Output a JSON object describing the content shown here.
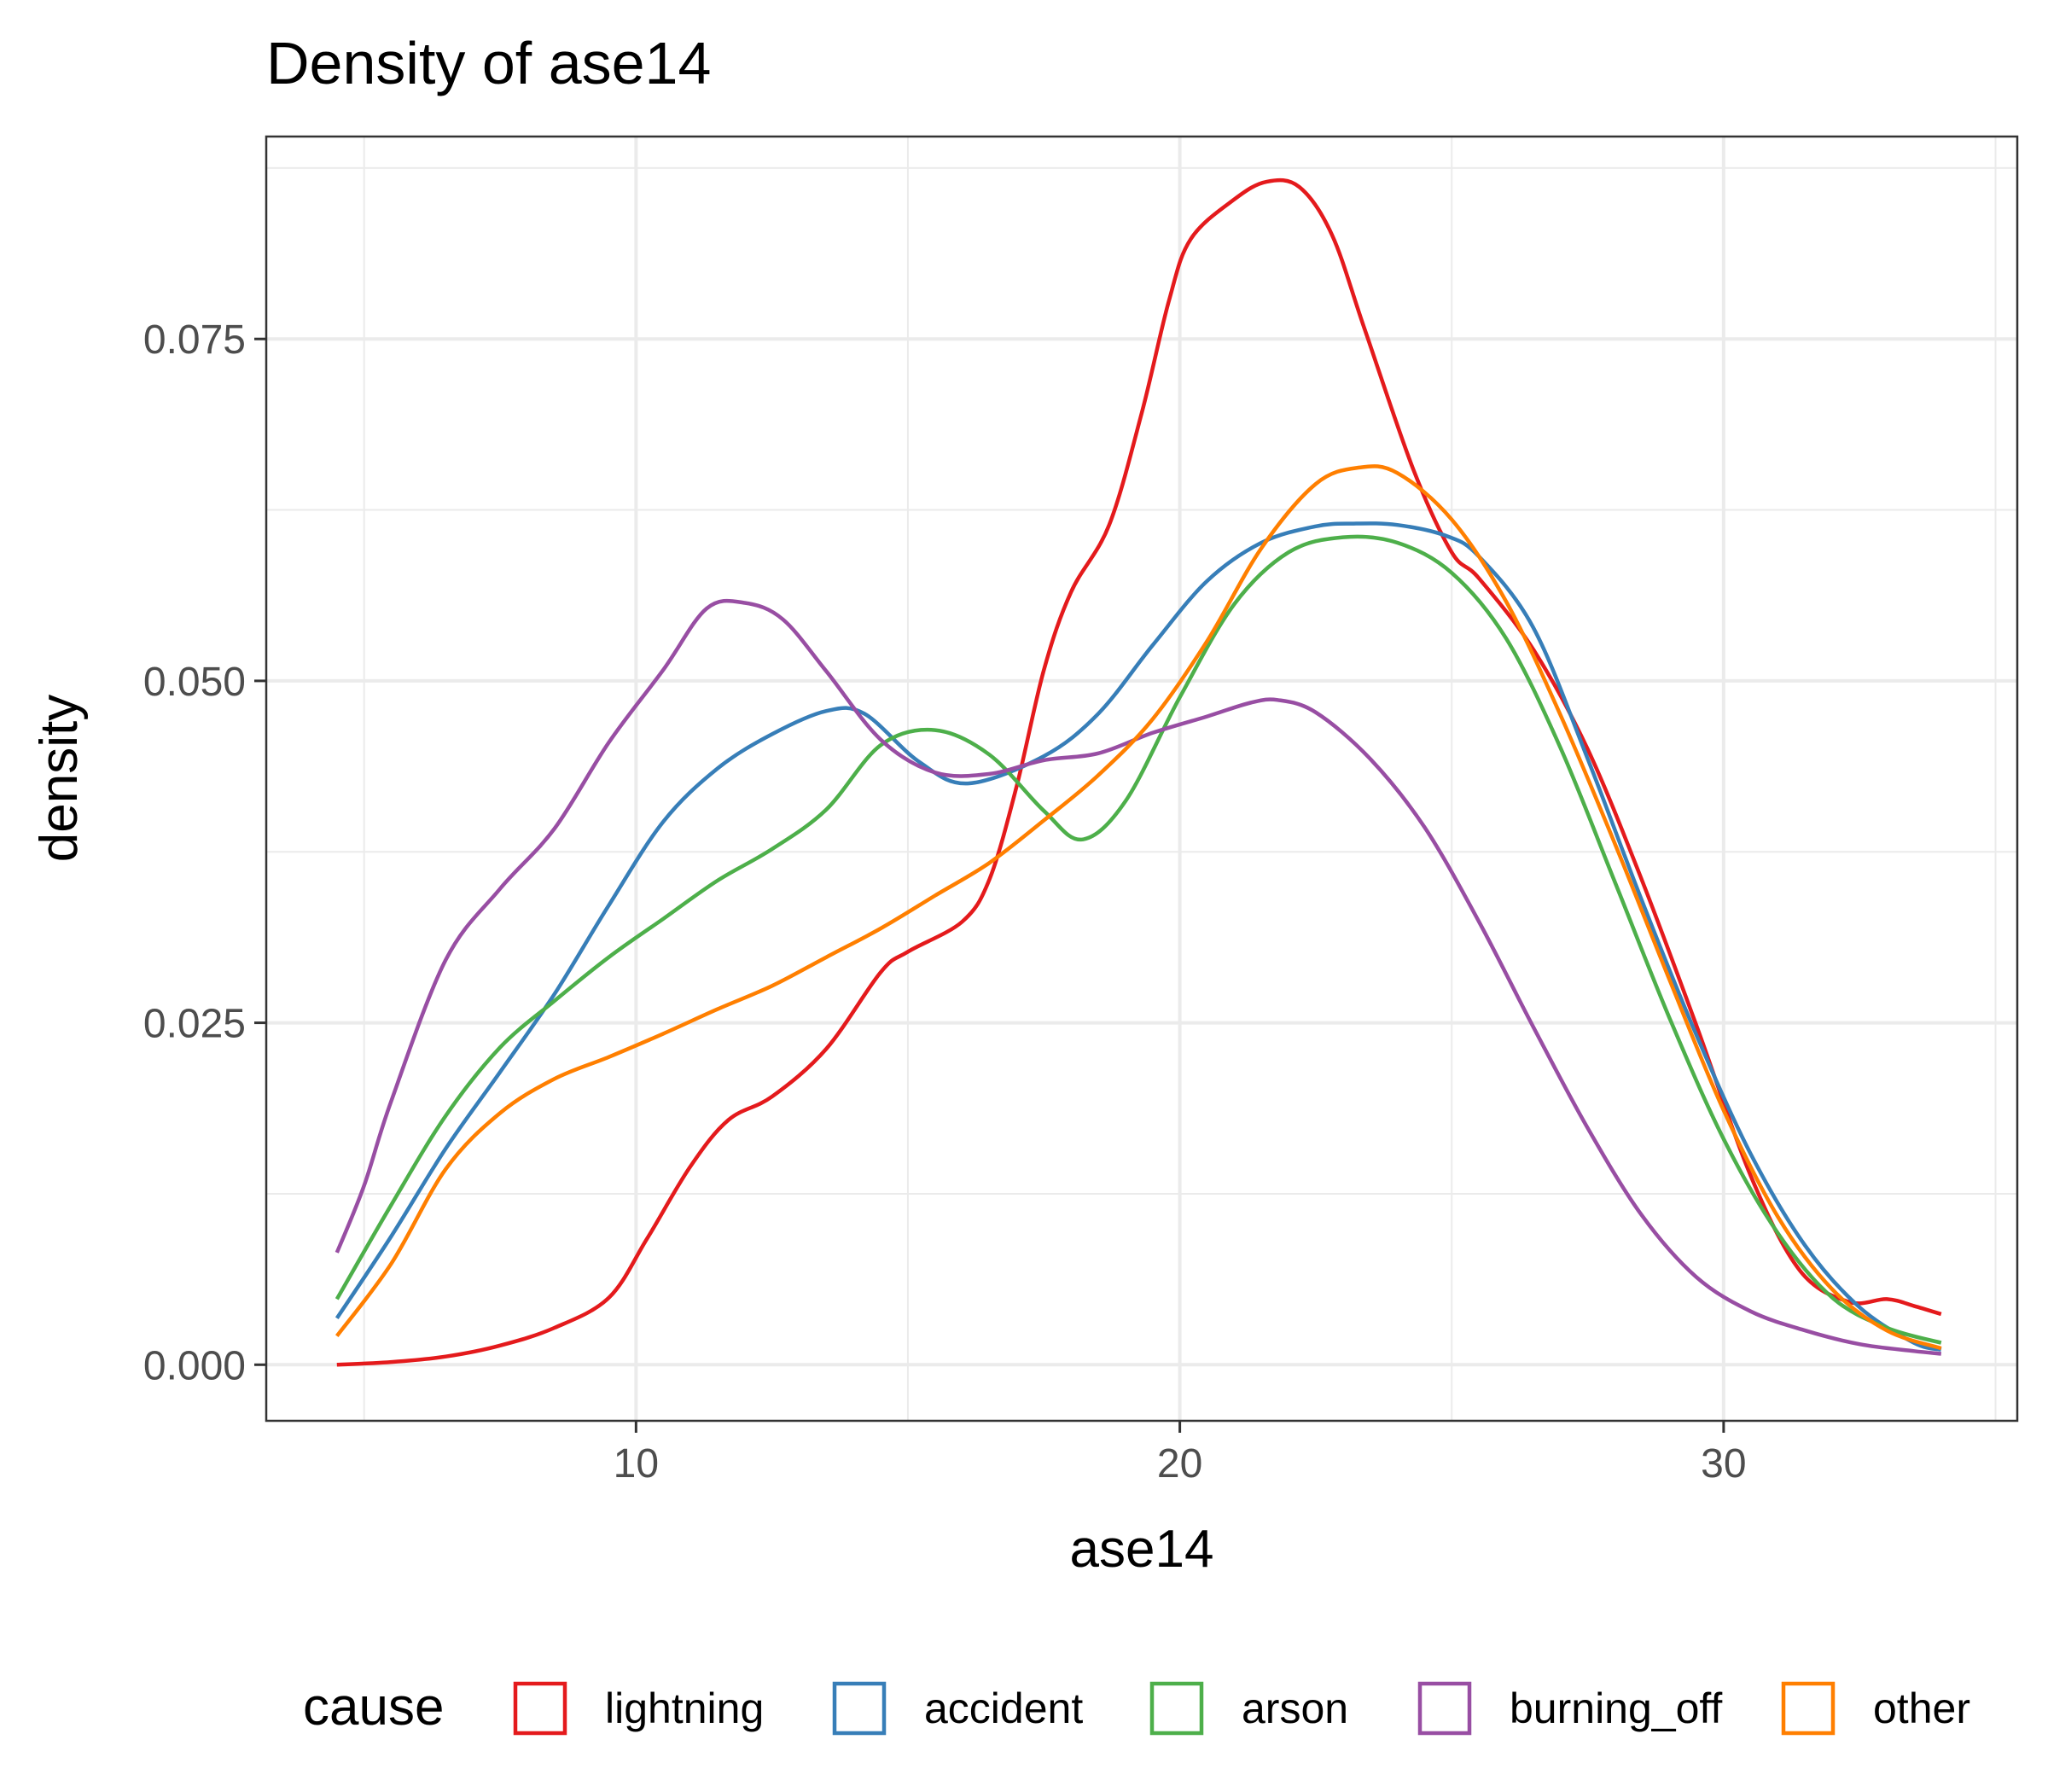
{
  "chart_data": {
    "type": "line",
    "title": "Density of ase14",
    "xlabel": "ase14",
    "ylabel": "density",
    "xlim": [
      3.2,
      35.4
    ],
    "ylim": [
      -0.0041,
      0.0898
    ],
    "x_ticks": [
      10,
      20,
      30
    ],
    "x_tick_labels": [
      "10",
      "20",
      "30"
    ],
    "y_ticks": [
      0.0,
      0.025,
      0.05,
      0.075
    ],
    "y_tick_labels": [
      "0.000",
      "0.025",
      "0.050",
      "0.075"
    ],
    "grid": true,
    "legend": {
      "title": "cause",
      "position": "bottom"
    },
    "series": [
      {
        "name": "lightning",
        "color": "#E41A1C",
        "x": [
          4.5,
          5.5,
          6.5,
          7.5,
          8.5,
          9.5,
          10.2,
          11,
          11.7,
          12.5,
          13.5,
          14.5,
          15,
          16,
          16.5,
          17,
          17.5,
          18,
          18.7,
          19.3,
          19.8,
          20.2,
          21,
          21.6,
          22.2,
          22.8,
          23.4,
          24.3,
          25,
          25.5,
          26.5,
          27.5,
          28.5,
          29.5,
          30.5,
          31.4,
          32.3,
          33,
          33.5,
          34
        ],
        "y": [
          0.0,
          0.0002,
          0.0006,
          0.0014,
          0.0027,
          0.0049,
          0.0092,
          0.0145,
          0.0179,
          0.0196,
          0.0231,
          0.0287,
          0.0302,
          0.0324,
          0.0355,
          0.0423,
          0.0508,
          0.0565,
          0.0614,
          0.0696,
          0.0778,
          0.0823,
          0.0852,
          0.0865,
          0.0861,
          0.0826,
          0.0757,
          0.0654,
          0.0594,
          0.0575,
          0.0523,
          0.045,
          0.0354,
          0.0248,
          0.0138,
          0.0069,
          0.0046,
          0.0048,
          0.0043,
          0.0037
        ]
      },
      {
        "name": "accident",
        "color": "#377EB8",
        "x": [
          4.5,
          5.5,
          6.5,
          7.5,
          8.5,
          9.5,
          10.5,
          11.5,
          12.5,
          13.5,
          14.2,
          15.2,
          16.1,
          17.5,
          18.5,
          19.5,
          20.5,
          21.5,
          22.5,
          23.2,
          24,
          24.9,
          25.5,
          26.5,
          27.5,
          28.5,
          29.5,
          30.5,
          31.5,
          32.5,
          33.5,
          34
        ],
        "y": [
          0.0034,
          0.0094,
          0.0158,
          0.0214,
          0.0271,
          0.0336,
          0.0397,
          0.0436,
          0.0461,
          0.0478,
          0.0476,
          0.0441,
          0.0425,
          0.0445,
          0.0476,
          0.0526,
          0.0573,
          0.0601,
          0.0613,
          0.0615,
          0.0614,
          0.0606,
          0.0591,
          0.0539,
          0.0443,
          0.0339,
          0.0241,
          0.0154,
          0.0087,
          0.0042,
          0.0016,
          0.0011
        ]
      },
      {
        "name": "arson",
        "color": "#4DAF4A",
        "x": [
          4.5,
          5.5,
          6.5,
          7.5,
          8.5,
          9.5,
          10.5,
          11.5,
          12.5,
          13.5,
          14.5,
          15.5,
          16.5,
          17.5,
          18.2,
          19,
          20,
          21,
          22,
          23,
          24,
          25,
          26,
          27,
          28,
          29,
          30,
          31,
          32,
          33,
          34
        ],
        "y": [
          0.0048,
          0.0117,
          0.0182,
          0.0232,
          0.0266,
          0.0298,
          0.0326,
          0.0354,
          0.0377,
          0.0406,
          0.0453,
          0.0464,
          0.0446,
          0.0405,
          0.0384,
          0.0412,
          0.0488,
          0.0556,
          0.0594,
          0.0605,
          0.0601,
          0.0579,
          0.0531,
          0.0451,
          0.0353,
          0.0254,
          0.0165,
          0.0096,
          0.0049,
          0.0027,
          0.0016
        ]
      },
      {
        "name": "burning_off",
        "color": "#984EA3",
        "x": [
          4.5,
          5,
          5.5,
          6.5,
          7.5,
          8.5,
          9.5,
          10.5,
          11.3,
          12,
          12.7,
          13.5,
          14.5,
          15.5,
          16.5,
          17.5,
          18.5,
          19.5,
          20.5,
          21.3,
          21.8,
          22.5,
          23.5,
          24.5,
          25.5,
          26.5,
          27.5,
          28.5,
          29.5,
          30.5,
          31.5,
          32.5,
          33.5,
          34
        ],
        "y": [
          0.0082,
          0.0131,
          0.0193,
          0.0296,
          0.0348,
          0.0392,
          0.0455,
          0.0508,
          0.0553,
          0.0557,
          0.0545,
          0.0507,
          0.0457,
          0.0433,
          0.0432,
          0.0442,
          0.0447,
          0.0462,
          0.0474,
          0.0484,
          0.0486,
          0.0477,
          0.0443,
          0.0393,
          0.0324,
          0.0247,
          0.0173,
          0.0109,
          0.0064,
          0.0039,
          0.0025,
          0.0015,
          0.001,
          0.0008
        ]
      },
      {
        "name": "other",
        "color": "#FF7F00",
        "x": [
          4.5,
          5.5,
          6.5,
          7.5,
          8.5,
          9.5,
          10.5,
          11.5,
          12.5,
          13.5,
          14.5,
          15.5,
          16.5,
          17.5,
          18.5,
          19.5,
          20.5,
          21.5,
          22.5,
          23.3,
          24,
          25,
          26,
          27,
          28,
          29,
          30,
          31,
          32,
          33,
          34
        ],
        "y": [
          0.0021,
          0.0074,
          0.0143,
          0.0184,
          0.0209,
          0.0225,
          0.0242,
          0.026,
          0.0277,
          0.0298,
          0.0319,
          0.0343,
          0.0367,
          0.0398,
          0.0431,
          0.0472,
          0.0529,
          0.0597,
          0.0644,
          0.0656,
          0.0652,
          0.0618,
          0.0558,
          0.0475,
          0.0381,
          0.0282,
          0.0186,
          0.0108,
          0.0055,
          0.0025,
          0.0012
        ]
      }
    ]
  }
}
